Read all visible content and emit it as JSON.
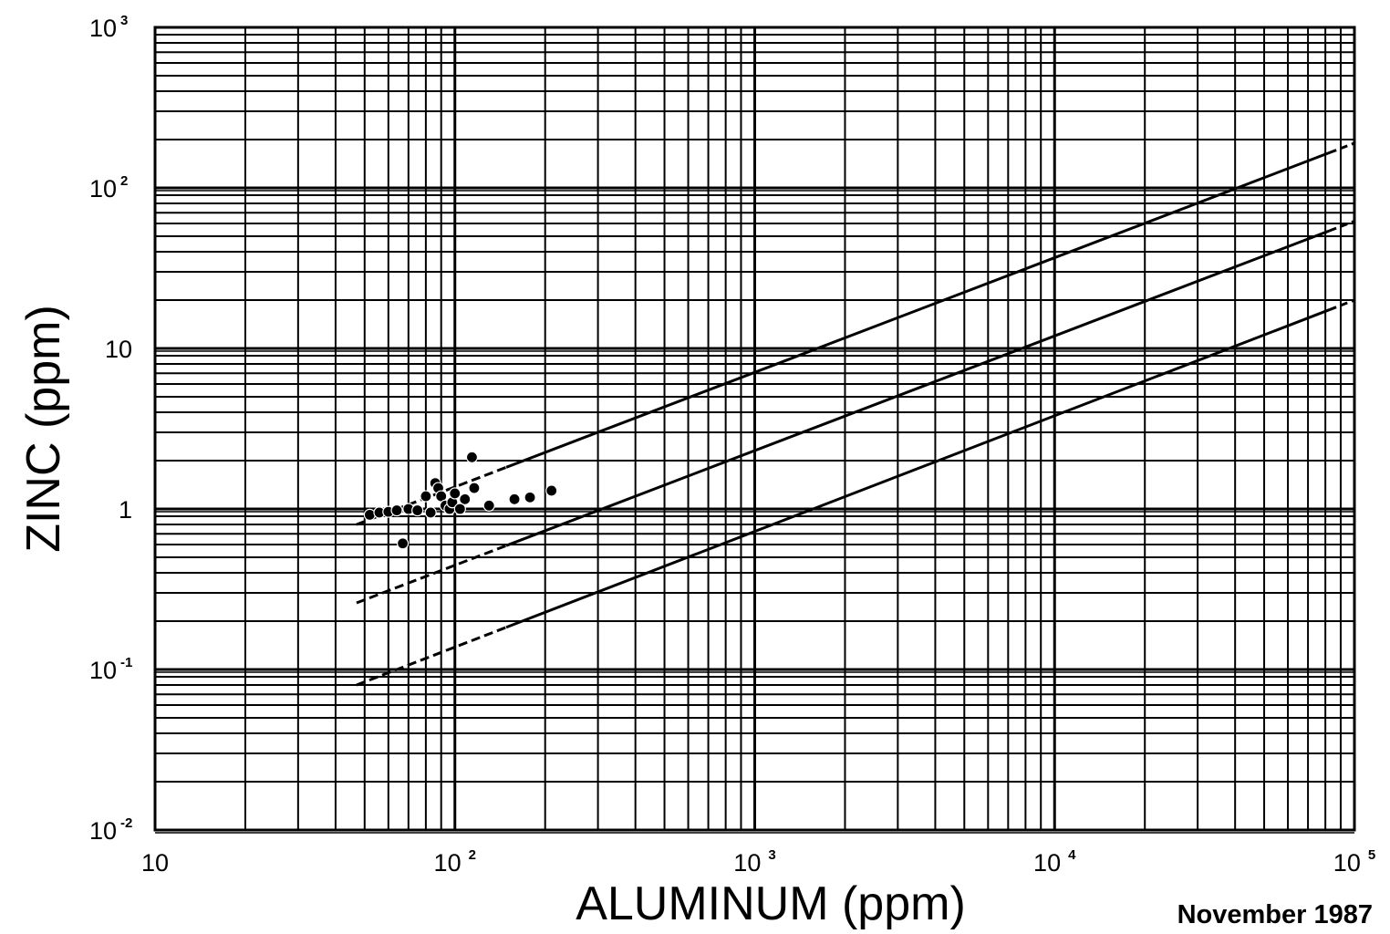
{
  "chart_data": {
    "type": "scatter",
    "title": "",
    "xlabel": "ALUMINUM  (ppm)",
    "ylabel": "ZINC  (ppm)",
    "xscale": "log",
    "yscale": "log",
    "xlim": [
      10,
      100000
    ],
    "ylim": [
      0.01,
      1000
    ],
    "grid": true,
    "x_ticks": [
      {
        "value": 10,
        "label": "10",
        "sup": ""
      },
      {
        "value": 100,
        "label": "10",
        "sup": "2"
      },
      {
        "value": 1000,
        "label": "10",
        "sup": "3"
      },
      {
        "value": 10000,
        "label": "10",
        "sup": "4"
      },
      {
        "value": 100000,
        "label": "10",
        "sup": "5"
      }
    ],
    "y_ticks": [
      {
        "value": 0.01,
        "label": "10",
        "sup": "-2"
      },
      {
        "value": 0.1,
        "label": "10",
        "sup": "-1"
      },
      {
        "value": 1,
        "label": "1",
        "sup": ""
      },
      {
        "value": 10,
        "label": "10",
        "sup": ""
      },
      {
        "value": 100,
        "label": "10",
        "sup": "2"
      },
      {
        "value": 1000,
        "label": "10",
        "sup": "3"
      }
    ],
    "reference_lines": [
      {
        "points": [
          [
            47,
            0.8
          ],
          [
            100000,
            190
          ]
        ]
      },
      {
        "points": [
          [
            47,
            0.26
          ],
          [
            100000,
            62
          ]
        ]
      },
      {
        "points": [
          [
            47,
            0.08
          ],
          [
            100000,
            20
          ]
        ]
      }
    ],
    "points": [
      {
        "x": 52,
        "y": 0.92
      },
      {
        "x": 56,
        "y": 0.95
      },
      {
        "x": 60,
        "y": 0.96
      },
      {
        "x": 64,
        "y": 0.98
      },
      {
        "x": 67,
        "y": 0.61
      },
      {
        "x": 70,
        "y": 1.0
      },
      {
        "x": 75,
        "y": 0.98
      },
      {
        "x": 80,
        "y": 1.2
      },
      {
        "x": 83,
        "y": 0.95
      },
      {
        "x": 86,
        "y": 1.45
      },
      {
        "x": 88,
        "y": 1.35
      },
      {
        "x": 90,
        "y": 1.2
      },
      {
        "x": 93,
        "y": 1.05
      },
      {
        "x": 96,
        "y": 1.0
      },
      {
        "x": 98,
        "y": 1.1
      },
      {
        "x": 100,
        "y": 1.25
      },
      {
        "x": 104,
        "y": 1.0
      },
      {
        "x": 108,
        "y": 1.15
      },
      {
        "x": 114,
        "y": 2.1
      },
      {
        "x": 116,
        "y": 1.35
      },
      {
        "x": 130,
        "y": 1.05
      },
      {
        "x": 158,
        "y": 1.15
      },
      {
        "x": 178,
        "y": 1.18
      },
      {
        "x": 210,
        "y": 1.3
      }
    ],
    "annotation": "November  1987"
  }
}
